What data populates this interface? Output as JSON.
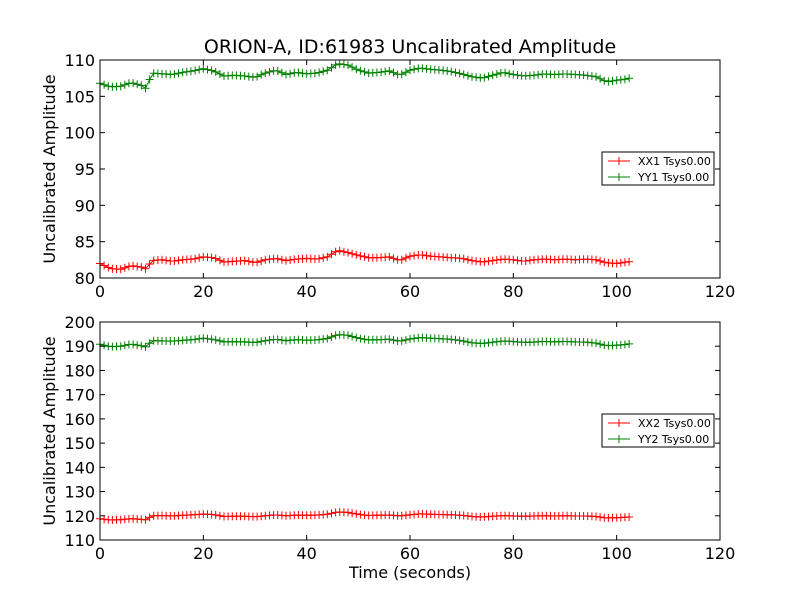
{
  "figure": {
    "title": "ORION-A, ID:61983 Uncalibrated Amplitude"
  },
  "chart_data": [
    {
      "type": "line",
      "title": "ORION-A, ID:61983 Uncalibrated Amplitude",
      "xlabel": "",
      "ylabel": "Uncalibrated Amplitude",
      "xlim": [
        0,
        120
      ],
      "ylim": [
        80,
        110
      ],
      "xticks": [
        "0",
        "20",
        "40",
        "60",
        "80",
        "100",
        "120"
      ],
      "yticks": [
        "80",
        "85",
        "90",
        "95",
        "100",
        "105",
        "110"
      ],
      "grid": false,
      "legend_position": "right",
      "marker": "plus",
      "series": [
        {
          "name": "XX1 Tsys0.00",
          "color": "#ff0000",
          "keypoints": [
            [
              0,
              82.0
            ],
            [
              2,
              81.3
            ],
            [
              4,
              81.2
            ],
            [
              6,
              81.7
            ],
            [
              8,
              81.5
            ],
            [
              9,
              81.2
            ],
            [
              10,
              82.4
            ],
            [
              12,
              82.5
            ],
            [
              14,
              82.3
            ],
            [
              16,
              82.5
            ],
            [
              18,
              82.6
            ],
            [
              20,
              82.9
            ],
            [
              22,
              82.8
            ],
            [
              24,
              82.2
            ],
            [
              26,
              82.3
            ],
            [
              28,
              82.4
            ],
            [
              30,
              82.1
            ],
            [
              32,
              82.5
            ],
            [
              34,
              82.7
            ],
            [
              36,
              82.4
            ],
            [
              38,
              82.6
            ],
            [
              40,
              82.7
            ],
            [
              42,
              82.6
            ],
            [
              44,
              82.9
            ],
            [
              46,
              83.8
            ],
            [
              48,
              83.5
            ],
            [
              50,
              83.1
            ],
            [
              52,
              82.8
            ],
            [
              54,
              82.8
            ],
            [
              56,
              82.9
            ],
            [
              58,
              82.4
            ],
            [
              60,
              83.0
            ],
            [
              62,
              83.2
            ],
            [
              64,
              83.0
            ],
            [
              66,
              82.9
            ],
            [
              68,
              82.8
            ],
            [
              70,
              82.7
            ],
            [
              72,
              82.4
            ],
            [
              74,
              82.2
            ],
            [
              76,
              82.4
            ],
            [
              78,
              82.6
            ],
            [
              80,
              82.5
            ],
            [
              82,
              82.3
            ],
            [
              84,
              82.5
            ],
            [
              86,
              82.6
            ],
            [
              88,
              82.5
            ],
            [
              90,
              82.6
            ],
            [
              92,
              82.5
            ],
            [
              94,
              82.6
            ],
            [
              96,
              82.5
            ],
            [
              98,
              82.1
            ],
            [
              100,
              82.0
            ],
            [
              102,
              82.2
            ],
            [
              103,
              82.3
            ]
          ]
        },
        {
          "name": "YY1 Tsys0.00",
          "color": "#008000",
          "keypoints": [
            [
              0,
              106.8
            ],
            [
              2,
              106.3
            ],
            [
              4,
              106.4
            ],
            [
              6,
              106.9
            ],
            [
              8,
              106.5
            ],
            [
              9,
              106.0
            ],
            [
              10,
              108.2
            ],
            [
              12,
              108.1
            ],
            [
              14,
              108.0
            ],
            [
              16,
              108.3
            ],
            [
              18,
              108.5
            ],
            [
              20,
              108.8
            ],
            [
              22,
              108.5
            ],
            [
              24,
              107.8
            ],
            [
              26,
              107.9
            ],
            [
              28,
              107.8
            ],
            [
              30,
              107.6
            ],
            [
              32,
              108.2
            ],
            [
              34,
              108.6
            ],
            [
              36,
              108.0
            ],
            [
              38,
              108.3
            ],
            [
              40,
              108.1
            ],
            [
              42,
              108.2
            ],
            [
              44,
              108.6
            ],
            [
              46,
              109.5
            ],
            [
              48,
              109.3
            ],
            [
              50,
              108.6
            ],
            [
              52,
              108.2
            ],
            [
              54,
              108.3
            ],
            [
              56,
              108.5
            ],
            [
              58,
              107.9
            ],
            [
              60,
              108.6
            ],
            [
              62,
              108.9
            ],
            [
              64,
              108.7
            ],
            [
              66,
              108.6
            ],
            [
              68,
              108.4
            ],
            [
              70,
              108.1
            ],
            [
              72,
              107.7
            ],
            [
              74,
              107.5
            ],
            [
              76,
              107.9
            ],
            [
              78,
              108.3
            ],
            [
              80,
              108.0
            ],
            [
              82,
              107.8
            ],
            [
              84,
              107.9
            ],
            [
              86,
              108.1
            ],
            [
              88,
              108.0
            ],
            [
              90,
              108.1
            ],
            [
              92,
              108.0
            ],
            [
              94,
              107.9
            ],
            [
              96,
              107.7
            ],
            [
              98,
              107.0
            ],
            [
              100,
              107.2
            ],
            [
              102,
              107.4
            ],
            [
              103,
              107.6
            ]
          ]
        }
      ]
    },
    {
      "type": "line",
      "title": "",
      "xlabel": "Time (seconds)",
      "ylabel": "Uncalibrated Amplitude",
      "xlim": [
        0,
        120
      ],
      "ylim": [
        110,
        200
      ],
      "xticks": [
        "0",
        "20",
        "40",
        "60",
        "80",
        "100",
        "120"
      ],
      "yticks": [
        "110",
        "120",
        "130",
        "140",
        "150",
        "160",
        "170",
        "180",
        "190",
        "200"
      ],
      "grid": false,
      "legend_position": "right",
      "marker": "plus",
      "series": [
        {
          "name": "XX2 Tsys0.00",
          "color": "#ff0000",
          "keypoints": [
            [
              0,
              118.8
            ],
            [
              2,
              118.2
            ],
            [
              4,
              118.4
            ],
            [
              6,
              118.8
            ],
            [
              8,
              118.5
            ],
            [
              9,
              118.3
            ],
            [
              10,
              120.0
            ],
            [
              12,
              120.1
            ],
            [
              14,
              119.9
            ],
            [
              16,
              120.2
            ],
            [
              18,
              120.4
            ],
            [
              20,
              120.7
            ],
            [
              22,
              120.5
            ],
            [
              24,
              119.7
            ],
            [
              26,
              119.8
            ],
            [
              28,
              119.8
            ],
            [
              30,
              119.6
            ],
            [
              32,
              120.0
            ],
            [
              34,
              120.4
            ],
            [
              36,
              120.0
            ],
            [
              38,
              120.3
            ],
            [
              40,
              120.2
            ],
            [
              42,
              120.3
            ],
            [
              44,
              120.6
            ],
            [
              46,
              121.6
            ],
            [
              48,
              121.4
            ],
            [
              50,
              120.6
            ],
            [
              52,
              120.1
            ],
            [
              54,
              120.2
            ],
            [
              56,
              120.3
            ],
            [
              58,
              119.9
            ],
            [
              60,
              120.4
            ],
            [
              62,
              120.8
            ],
            [
              64,
              120.6
            ],
            [
              66,
              120.5
            ],
            [
              68,
              120.4
            ],
            [
              70,
              120.2
            ],
            [
              72,
              119.7
            ],
            [
              74,
              119.5
            ],
            [
              76,
              119.8
            ],
            [
              78,
              120.1
            ],
            [
              80,
              119.9
            ],
            [
              82,
              119.8
            ],
            [
              84,
              119.9
            ],
            [
              86,
              120.0
            ],
            [
              88,
              119.9
            ],
            [
              90,
              120.0
            ],
            [
              92,
              119.9
            ],
            [
              94,
              119.9
            ],
            [
              96,
              119.7
            ],
            [
              98,
              119.1
            ],
            [
              100,
              119.2
            ],
            [
              102,
              119.4
            ],
            [
              103,
              119.6
            ]
          ]
        },
        {
          "name": "YY2 Tsys0.00",
          "color": "#008000",
          "keypoints": [
            [
              0,
              190.8
            ],
            [
              2,
              189.8
            ],
            [
              4,
              190.0
            ],
            [
              6,
              190.9
            ],
            [
              8,
              190.2
            ],
            [
              9,
              189.6
            ],
            [
              10,
              192.3
            ],
            [
              12,
              192.2
            ],
            [
              14,
              192.1
            ],
            [
              16,
              192.4
            ],
            [
              18,
              192.7
            ],
            [
              20,
              193.3
            ],
            [
              22,
              192.8
            ],
            [
              24,
              191.8
            ],
            [
              26,
              191.9
            ],
            [
              28,
              191.8
            ],
            [
              30,
              191.5
            ],
            [
              32,
              192.3
            ],
            [
              34,
              192.9
            ],
            [
              36,
              192.3
            ],
            [
              38,
              192.7
            ],
            [
              40,
              192.5
            ],
            [
              42,
              192.6
            ],
            [
              44,
              193.2
            ],
            [
              46,
              194.8
            ],
            [
              48,
              194.5
            ],
            [
              50,
              193.3
            ],
            [
              52,
              192.6
            ],
            [
              54,
              192.7
            ],
            [
              56,
              192.9
            ],
            [
              58,
              192.0
            ],
            [
              60,
              193.0
            ],
            [
              62,
              193.6
            ],
            [
              64,
              193.3
            ],
            [
              66,
              193.1
            ],
            [
              68,
              192.8
            ],
            [
              70,
              192.3
            ],
            [
              72,
              191.4
            ],
            [
              74,
              191.1
            ],
            [
              76,
              191.6
            ],
            [
              78,
              192.2
            ],
            [
              80,
              191.9
            ],
            [
              82,
              191.6
            ],
            [
              84,
              191.7
            ],
            [
              86,
              192.0
            ],
            [
              88,
              191.8
            ],
            [
              90,
              192.0
            ],
            [
              92,
              191.8
            ],
            [
              94,
              191.7
            ],
            [
              96,
              191.3
            ],
            [
              98,
              190.2
            ],
            [
              100,
              190.4
            ],
            [
              102,
              190.8
            ],
            [
              103,
              191.2
            ]
          ]
        }
      ]
    }
  ]
}
